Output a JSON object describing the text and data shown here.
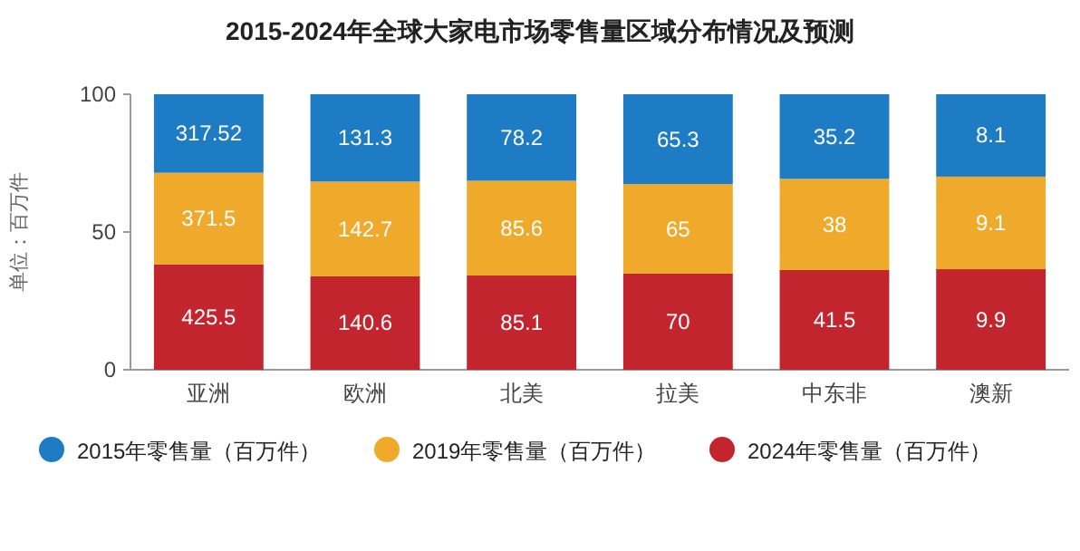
{
  "chart_data": {
    "type": "bar",
    "stacked": true,
    "title": "2015-2024年全球大家电市场零售量区域分布情况及预测",
    "ylabel": "单位：百万件",
    "categories": [
      "亚洲",
      "欧洲",
      "北美",
      "拉美",
      "中东非",
      "澳新"
    ],
    "ylim": [
      0,
      100
    ],
    "yticks": [
      0,
      50,
      100
    ],
    "legend": "bottom",
    "grid": false,
    "series": [
      {
        "name": "2024年零售量（百万件）",
        "color": "#c3252f",
        "values": [
          38.2,
          33.9,
          34.2,
          34.9,
          36.2,
          36.5
        ]
      },
      {
        "name": "2019年零售量（百万件）",
        "color": "#f0aa2b",
        "values": [
          33.3,
          34.4,
          34.4,
          32.5,
          33.1,
          33.6
        ]
      },
      {
        "name": "2015年零售量（百万件）",
        "color": "#1d7cc4",
        "values": [
          28.5,
          31.7,
          31.4,
          32.6,
          30.7,
          29.9
        ]
      }
    ],
    "annotations": [
      {
        "text": "425.5",
        "x": "亚洲",
        "y": 38.2
      },
      {
        "text": "371.5",
        "x": "亚洲",
        "y": 71.5
      },
      {
        "text": "317.52",
        "x": "亚洲",
        "y": 100
      },
      {
        "text": "140.6",
        "x": "欧洲",
        "y": 33.9
      },
      {
        "text": "142.7",
        "x": "欧洲",
        "y": 68.3
      },
      {
        "text": "131.3",
        "x": "欧洲",
        "y": 100
      },
      {
        "text": "85.1",
        "x": "北美",
        "y": 34.2
      },
      {
        "text": "85.6",
        "x": "北美",
        "y": 68.6
      },
      {
        "text": "78.2",
        "x": "北美",
        "y": 100
      },
      {
        "text": "70",
        "x": "拉美",
        "y": 34.9
      },
      {
        "text": "65",
        "x": "拉美",
        "y": 67.4
      },
      {
        "text": "65.3",
        "x": "拉美",
        "y": 100
      },
      {
        "text": "41.5",
        "x": "中东非",
        "y": 36.2
      },
      {
        "text": "38",
        "x": "中东非",
        "y": 69.3
      },
      {
        "text": "35.2",
        "x": "中东非",
        "y": 100
      },
      {
        "text": "9.9",
        "x": "澳新",
        "y": 36.5
      },
      {
        "text": "9.1",
        "x": "澳新",
        "y": 70.1
      },
      {
        "text": "8.1",
        "x": "澳新",
        "y": 100
      }
    ]
  }
}
